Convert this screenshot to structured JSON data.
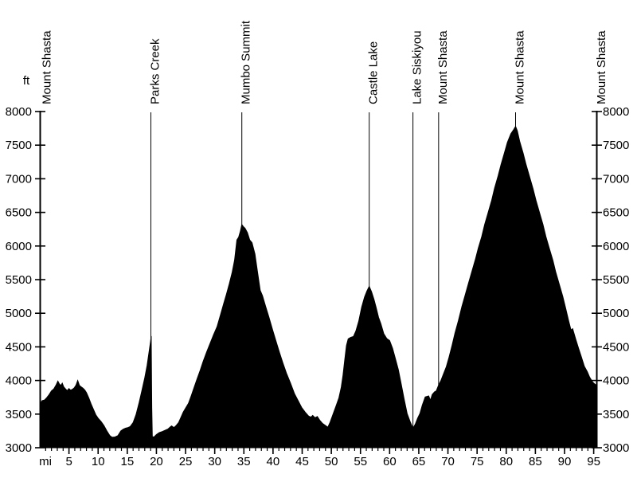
{
  "chart_data": {
    "type": "area",
    "x_unit_label": "mi",
    "y_unit_label": "ft",
    "xlim": [
      0,
      95.6
    ],
    "ylim": [
      3000,
      8000
    ],
    "x_ticks": [
      5,
      10,
      15,
      20,
      25,
      30,
      35,
      40,
      45,
      50,
      55,
      60,
      65,
      70,
      75,
      80,
      85,
      90,
      95
    ],
    "x_minor_tick_step": 1,
    "y_ticks": [
      3000,
      3500,
      4000,
      4500,
      5000,
      5500,
      6000,
      6500,
      7000,
      7500,
      8000
    ],
    "fill_color": "#000000",
    "axis_color": "#000000",
    "text_color": "#000000",
    "background_color": "#ffffff",
    "legend": "none",
    "grid": "off",
    "markers": [
      {
        "label": "Mount Shasta",
        "mile": 0.5,
        "line": false
      },
      {
        "label": "Parks Creek",
        "mile": 19.05,
        "line": true
      },
      {
        "label": "Mumbo Summit",
        "mile": 34.65,
        "line": true
      },
      {
        "label": "Castle Lake",
        "mile": 56.5,
        "line": true
      },
      {
        "label": "Lake Siskiyou",
        "mile": 64.0,
        "line": true
      },
      {
        "label": "Mount Shasta",
        "mile": 68.4,
        "line": true
      },
      {
        "label": "Mount Shasta",
        "mile": 81.6,
        "line": true
      },
      {
        "label": "Mount Shasta",
        "mile": 95.6,
        "line": false
      }
    ],
    "profile": [
      [
        0,
        3640
      ],
      [
        0.4,
        3700
      ],
      [
        0.8,
        3710
      ],
      [
        1.2,
        3745
      ],
      [
        1.6,
        3790
      ],
      [
        2,
        3845
      ],
      [
        2.4,
        3875
      ],
      [
        2.8,
        3935
      ],
      [
        3.1,
        3990
      ],
      [
        3.35,
        3950
      ],
      [
        3.6,
        3925
      ],
      [
        3.85,
        3960
      ],
      [
        4.1,
        3905
      ],
      [
        4.4,
        3875
      ],
      [
        4.7,
        3850
      ],
      [
        5,
        3880
      ],
      [
        5.3,
        3855
      ],
      [
        5.6,
        3870
      ],
      [
        5.9,
        3890
      ],
      [
        6.2,
        3930
      ],
      [
        6.5,
        4000
      ],
      [
        6.8,
        3925
      ],
      [
        7.1,
        3905
      ],
      [
        7.4,
        3885
      ],
      [
        7.7,
        3860
      ],
      [
        8,
        3820
      ],
      [
        8.4,
        3740
      ],
      [
        8.8,
        3650
      ],
      [
        9.2,
        3570
      ],
      [
        9.6,
        3490
      ],
      [
        10,
        3440
      ],
      [
        10.5,
        3390
      ],
      [
        11,
        3330
      ],
      [
        11.5,
        3250
      ],
      [
        12,
        3180
      ],
      [
        12.4,
        3155
      ],
      [
        12.9,
        3160
      ],
      [
        13.4,
        3180
      ],
      [
        13.9,
        3250
      ],
      [
        14.3,
        3275
      ],
      [
        14.7,
        3290
      ],
      [
        15.1,
        3300
      ],
      [
        15.5,
        3315
      ],
      [
        16,
        3375
      ],
      [
        16.5,
        3490
      ],
      [
        17,
        3660
      ],
      [
        17.5,
        3845
      ],
      [
        18,
        4040
      ],
      [
        18.4,
        4220
      ],
      [
        18.7,
        4400
      ],
      [
        19,
        4580
      ],
      [
        19.1,
        4660
      ],
      [
        19.2,
        3600
      ],
      [
        19.3,
        3165
      ],
      [
        19.6,
        3160
      ],
      [
        20,
        3195
      ],
      [
        20.5,
        3225
      ],
      [
        21,
        3240
      ],
      [
        21.5,
        3260
      ],
      [
        22,
        3280
      ],
      [
        22.4,
        3310
      ],
      [
        22.6,
        3325
      ],
      [
        23,
        3300
      ],
      [
        23.4,
        3330
      ],
      [
        23.8,
        3375
      ],
      [
        24.2,
        3450
      ],
      [
        24.6,
        3530
      ],
      [
        25,
        3590
      ],
      [
        25.5,
        3660
      ],
      [
        26,
        3780
      ],
      [
        26.5,
        3905
      ],
      [
        27,
        4030
      ],
      [
        27.5,
        4150
      ],
      [
        28,
        4280
      ],
      [
        28.6,
        4420
      ],
      [
        29.2,
        4550
      ],
      [
        29.8,
        4680
      ],
      [
        30.4,
        4800
      ],
      [
        31,
        4980
      ],
      [
        31.5,
        5130
      ],
      [
        32,
        5280
      ],
      [
        32.5,
        5440
      ],
      [
        33,
        5610
      ],
      [
        33.4,
        5790
      ],
      [
        33.8,
        6090
      ],
      [
        34.1,
        6130
      ],
      [
        34.4,
        6220
      ],
      [
        34.65,
        6320
      ],
      [
        34.9,
        6290
      ],
      [
        35.2,
        6265
      ],
      [
        35.6,
        6200
      ],
      [
        36,
        6090
      ],
      [
        36.4,
        6050
      ],
      [
        36.9,
        5880
      ],
      [
        37.3,
        5640
      ],
      [
        37.8,
        5340
      ],
      [
        38.2,
        5260
      ],
      [
        38.7,
        5110
      ],
      [
        39.3,
        4940
      ],
      [
        39.9,
        4760
      ],
      [
        40.5,
        4590
      ],
      [
        41.1,
        4420
      ],
      [
        41.7,
        4260
      ],
      [
        42.3,
        4110
      ],
      [
        43,
        3960
      ],
      [
        43.7,
        3800
      ],
      [
        44.3,
        3700
      ],
      [
        44.9,
        3600
      ],
      [
        45.5,
        3530
      ],
      [
        46.1,
        3470
      ],
      [
        46.5,
        3455
      ],
      [
        46.8,
        3480
      ],
      [
        47.2,
        3445
      ],
      [
        47.6,
        3465
      ],
      [
        48,
        3410
      ],
      [
        48.5,
        3360
      ],
      [
        49,
        3330
      ],
      [
        49.4,
        3305
      ],
      [
        49.8,
        3380
      ],
      [
        50.3,
        3500
      ],
      [
        50.8,
        3620
      ],
      [
        51.3,
        3740
      ],
      [
        51.7,
        3900
      ],
      [
        52,
        4080
      ],
      [
        52.3,
        4300
      ],
      [
        52.6,
        4520
      ],
      [
        52.9,
        4620
      ],
      [
        53.3,
        4640
      ],
      [
        53.8,
        4655
      ],
      [
        54.2,
        4735
      ],
      [
        54.7,
        4880
      ],
      [
        55.2,
        5090
      ],
      [
        55.7,
        5240
      ],
      [
        56.1,
        5330
      ],
      [
        56.5,
        5400
      ],
      [
        56.9,
        5320
      ],
      [
        57.3,
        5210
      ],
      [
        57.7,
        5080
      ],
      [
        58.1,
        4940
      ],
      [
        58.5,
        4845
      ],
      [
        59,
        4695
      ],
      [
        59.5,
        4625
      ],
      [
        60,
        4595
      ],
      [
        60.5,
        4480
      ],
      [
        61,
        4320
      ],
      [
        61.5,
        4160
      ],
      [
        62,
        3940
      ],
      [
        62.5,
        3720
      ],
      [
        63,
        3510
      ],
      [
        63.5,
        3390
      ],
      [
        64,
        3290
      ],
      [
        64.4,
        3350
      ],
      [
        64.8,
        3440
      ],
      [
        65.2,
        3510
      ],
      [
        65.6,
        3630
      ],
      [
        66.1,
        3755
      ],
      [
        66.7,
        3770
      ],
      [
        67,
        3705
      ],
      [
        67.3,
        3790
      ],
      [
        67.7,
        3830
      ],
      [
        68,
        3845
      ],
      [
        68.4,
        3930
      ],
      [
        68.8,
        4000
      ],
      [
        69.2,
        4090
      ],
      [
        69.7,
        4200
      ],
      [
        70.2,
        4350
      ],
      [
        70.7,
        4520
      ],
      [
        71.2,
        4700
      ],
      [
        71.8,
        4890
      ],
      [
        72.4,
        5100
      ],
      [
        72.9,
        5255
      ],
      [
        73.5,
        5440
      ],
      [
        74.1,
        5620
      ],
      [
        74.7,
        5800
      ],
      [
        75.2,
        5965
      ],
      [
        75.8,
        6140
      ],
      [
        76.3,
        6320
      ],
      [
        76.9,
        6500
      ],
      [
        77.5,
        6680
      ],
      [
        78,
        6860
      ],
      [
        78.6,
        7040
      ],
      [
        79.1,
        7210
      ],
      [
        79.7,
        7390
      ],
      [
        80.2,
        7540
      ],
      [
        80.8,
        7670
      ],
      [
        81.3,
        7735
      ],
      [
        81.6,
        7780
      ],
      [
        81.9,
        7715
      ],
      [
        82.3,
        7560
      ],
      [
        82.9,
        7380
      ],
      [
        83.4,
        7210
      ],
      [
        84,
        7030
      ],
      [
        84.6,
        6850
      ],
      [
        85.1,
        6680
      ],
      [
        85.7,
        6500
      ],
      [
        86.3,
        6320
      ],
      [
        86.8,
        6140
      ],
      [
        87.4,
        5960
      ],
      [
        88,
        5785
      ],
      [
        88.5,
        5610
      ],
      [
        89.1,
        5430
      ],
      [
        89.7,
        5250
      ],
      [
        90.2,
        5070
      ],
      [
        90.7,
        4890
      ],
      [
        91.1,
        4750
      ],
      [
        91.4,
        4770
      ],
      [
        91.9,
        4620
      ],
      [
        92.4,
        4480
      ],
      [
        92.9,
        4350
      ],
      [
        93.4,
        4210
      ],
      [
        93.9,
        4130
      ],
      [
        94.3,
        4050
      ],
      [
        94.8,
        3980
      ],
      [
        95.2,
        3945
      ],
      [
        95.6,
        3920
      ]
    ]
  }
}
